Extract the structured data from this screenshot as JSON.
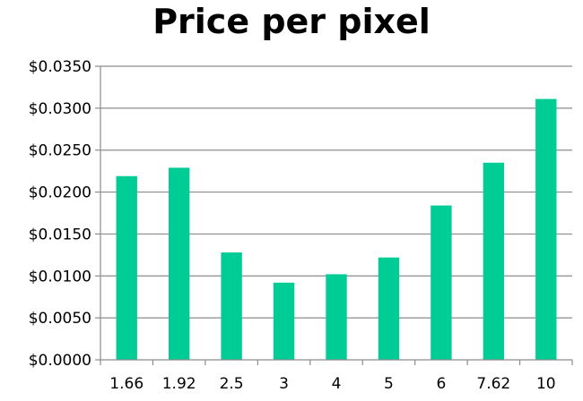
{
  "chart_data": {
    "type": "bar",
    "title": "Price per pixel",
    "xlabel": "",
    "ylabel": "",
    "categories": [
      "1.66",
      "1.92",
      "2.5",
      "3",
      "4",
      "5",
      "6",
      "7.62",
      "10"
    ],
    "values": [
      0.0219,
      0.0229,
      0.0128,
      0.0092,
      0.0102,
      0.0122,
      0.0184,
      0.0235,
      0.0311
    ],
    "ylim": [
      0,
      0.035
    ],
    "yticks": [
      "$0.0000",
      "$0.0050",
      "$0.0100",
      "$0.0150",
      "$0.0200",
      "$0.0250",
      "$0.0300",
      "$0.0350"
    ],
    "ytick_values": [
      0,
      0.005,
      0.01,
      0.015,
      0.02,
      0.025,
      0.03,
      0.035
    ],
    "grid": true,
    "legend": "none",
    "colors": {
      "bar": "#00cc96",
      "grid": "#8c8c8c",
      "axis": "#8c8c8c"
    }
  }
}
